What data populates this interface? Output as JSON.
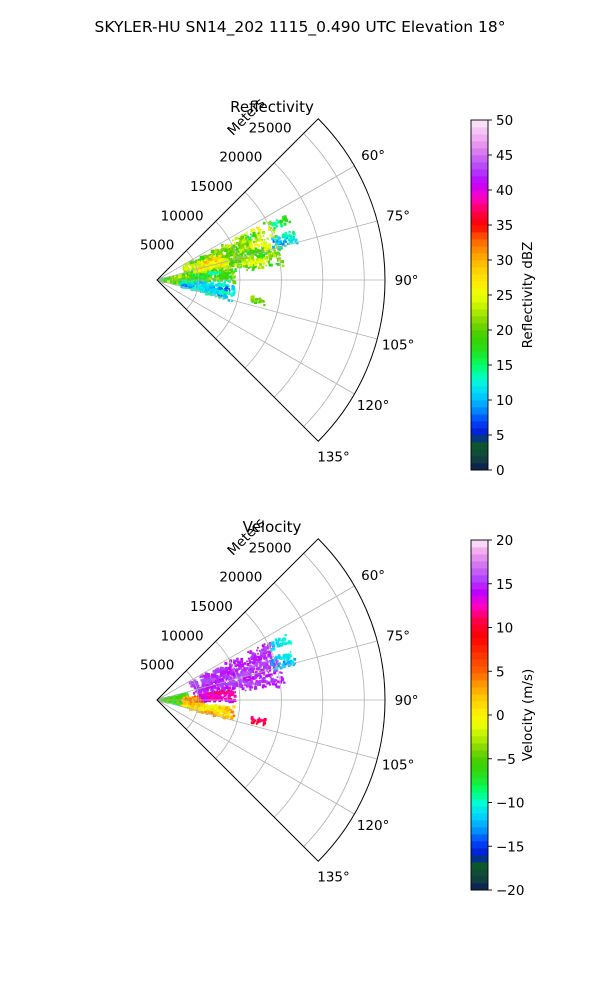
{
  "figure": {
    "suptitle": "SKYLER-HU  SN14_202  1115_0.490 UTC Elevation 18°"
  },
  "chart_data": [
    {
      "type": "heatmap",
      "projection": "polar-sector",
      "title": "Reflectivity",
      "range_label": "Meters",
      "theta_range_deg": [
        45,
        135
      ],
      "r_max": 27500,
      "r_ticks": [
        5000,
        10000,
        15000,
        20000,
        25000
      ],
      "r_tick_labels": [
        "5000",
        "10000",
        "15000",
        "20000",
        "25000"
      ],
      "theta_ticks": [
        60,
        75,
        90,
        105,
        120,
        135
      ],
      "theta_tick_labels": [
        "60°",
        "75°",
        "90°",
        "105°",
        "120°",
        "135°"
      ],
      "grid": true,
      "colorbar": {
        "label": "Reflectivity dBZ",
        "vmin": 0,
        "vmax": 50,
        "ticks": [
          0,
          5,
          10,
          15,
          20,
          25,
          30,
          35,
          40,
          45,
          50
        ],
        "tick_labels": [
          "0",
          "5",
          "10",
          "15",
          "20",
          "25",
          "30",
          "35",
          "40",
          "45",
          "50"
        ],
        "stops": [
          {
            "v": 0,
            "color": "#0d1b55"
          },
          {
            "v": 2,
            "color": "#12473a"
          },
          {
            "v": 4,
            "color": "#0b5a2a"
          },
          {
            "v": 5,
            "color": "#0018c8"
          },
          {
            "v": 7,
            "color": "#0044ff"
          },
          {
            "v": 9,
            "color": "#009cff"
          },
          {
            "v": 11,
            "color": "#00d6ff"
          },
          {
            "v": 13,
            "color": "#00ffd0"
          },
          {
            "v": 15,
            "color": "#00ff66"
          },
          {
            "v": 17,
            "color": "#24e21e"
          },
          {
            "v": 19,
            "color": "#3ccf00"
          },
          {
            "v": 21,
            "color": "#7ad400"
          },
          {
            "v": 23,
            "color": "#b8f000"
          },
          {
            "v": 25,
            "color": "#eeff00"
          },
          {
            "v": 27,
            "color": "#ffea00"
          },
          {
            "v": 29,
            "color": "#ffc800"
          },
          {
            "v": 31,
            "color": "#ff9a00"
          },
          {
            "v": 33,
            "color": "#ff6000"
          },
          {
            "v": 35,
            "color": "#ff0000"
          },
          {
            "v": 37,
            "color": "#ff0050"
          },
          {
            "v": 39,
            "color": "#ff00c8"
          },
          {
            "v": 41,
            "color": "#c000ff"
          },
          {
            "v": 43,
            "color": "#b040ff"
          },
          {
            "v": 45,
            "color": "#d070f0"
          },
          {
            "v": 47,
            "color": "#eea0ee"
          },
          {
            "v": 50,
            "color": "#fcebfa"
          }
        ]
      },
      "echo_cells": [
        {
          "t0": 77,
          "t1": 102,
          "r0": 300,
          "r1": 4800,
          "v": 20,
          "noise": 4
        },
        {
          "t0": 62,
          "t1": 84,
          "r0": 3500,
          "r1": 15500,
          "v": 21,
          "noise": 4
        },
        {
          "t0": 68,
          "t1": 79,
          "r0": 4500,
          "r1": 8500,
          "v": 27,
          "noise": 3
        },
        {
          "t0": 82,
          "t1": 92,
          "r0": 4000,
          "r1": 9500,
          "v": 17,
          "noise": 4
        },
        {
          "t0": 92,
          "t1": 106,
          "r0": 3000,
          "r1": 9500,
          "v": 11,
          "noise": 3
        },
        {
          "t0": 70,
          "t1": 76,
          "r0": 14500,
          "r1": 17500,
          "v": 13,
          "noise": 4
        },
        {
          "t0": 63,
          "t1": 67,
          "r0": 15000,
          "r1": 17500,
          "v": 15,
          "noise": 3
        },
        {
          "t0": 100,
          "t1": 104,
          "r0": 11500,
          "r1": 13500,
          "v": 20,
          "noise": 2
        }
      ]
    },
    {
      "type": "heatmap",
      "projection": "polar-sector",
      "title": "Velocity",
      "range_label": "Meters",
      "theta_range_deg": [
        45,
        135
      ],
      "r_max": 27500,
      "r_ticks": [
        5000,
        10000,
        15000,
        20000,
        25000
      ],
      "r_tick_labels": [
        "5000",
        "10000",
        "15000",
        "20000",
        "25000"
      ],
      "theta_ticks": [
        60,
        75,
        90,
        105,
        120,
        135
      ],
      "theta_tick_labels": [
        "60°",
        "75°",
        "90°",
        "105°",
        "120°",
        "135°"
      ],
      "grid": true,
      "colorbar": {
        "label": "Velocity (m/s)",
        "vmin": -20,
        "vmax": 20,
        "ticks": [
          -20,
          -15,
          -10,
          -5,
          0,
          5,
          10,
          15,
          20
        ],
        "tick_labels": [
          "−20",
          "−15",
          "−10",
          "−5",
          "0",
          "5",
          "10",
          "15",
          "20"
        ],
        "stops": [
          {
            "v": -20,
            "color": "#0d1b55"
          },
          {
            "v": -18.5,
            "color": "#12473a"
          },
          {
            "v": -17,
            "color": "#0b5a2a"
          },
          {
            "v": -16,
            "color": "#0018c8"
          },
          {
            "v": -14.5,
            "color": "#0044ff"
          },
          {
            "v": -13,
            "color": "#009cff"
          },
          {
            "v": -11.5,
            "color": "#00d6ff"
          },
          {
            "v": -10,
            "color": "#00ffd0"
          },
          {
            "v": -8.5,
            "color": "#00ff66"
          },
          {
            "v": -7,
            "color": "#24e21e"
          },
          {
            "v": -5.5,
            "color": "#3ccf00"
          },
          {
            "v": -4,
            "color": "#7ad400"
          },
          {
            "v": -2.5,
            "color": "#b8f000"
          },
          {
            "v": -1,
            "color": "#eeff00"
          },
          {
            "v": 0.5,
            "color": "#ffea00"
          },
          {
            "v": 2,
            "color": "#ffc800"
          },
          {
            "v": 3.5,
            "color": "#ff9a00"
          },
          {
            "v": 5,
            "color": "#ff6000"
          },
          {
            "v": 7,
            "color": "#ff3000"
          },
          {
            "v": 9,
            "color": "#ff0000"
          },
          {
            "v": 11,
            "color": "#ff0050"
          },
          {
            "v": 12.5,
            "color": "#ff00c8"
          },
          {
            "v": 14,
            "color": "#c000ff"
          },
          {
            "v": 15.5,
            "color": "#b040ff"
          },
          {
            "v": 17,
            "color": "#d070f0"
          },
          {
            "v": 18.5,
            "color": "#eea0ee"
          },
          {
            "v": 20,
            "color": "#fcebfa"
          }
        ]
      },
      "echo_cells": [
        {
          "t0": 77,
          "t1": 102,
          "r0": 300,
          "r1": 3800,
          "v": -6,
          "noise": 2
        },
        {
          "t0": 84,
          "t1": 102,
          "r0": 3000,
          "r1": 5800,
          "v": 5,
          "noise": 3
        },
        {
          "t0": 95,
          "t1": 106,
          "r0": 3000,
          "r1": 9500,
          "v": 2,
          "noise": 3
        },
        {
          "t0": 62,
          "t1": 84,
          "r0": 4500,
          "r1": 15500,
          "v": 15,
          "noise": 1
        },
        {
          "t0": 82,
          "t1": 92,
          "r0": 4800,
          "r1": 9500,
          "v": 13,
          "noise": 2
        },
        {
          "t0": 70,
          "t1": 76,
          "r0": 14500,
          "r1": 17500,
          "v": -11,
          "noise": 2
        },
        {
          "t0": 63,
          "t1": 67,
          "r0": 15000,
          "r1": 17500,
          "v": -11,
          "noise": 1
        },
        {
          "t0": 100,
          "t1": 104,
          "r0": 11500,
          "r1": 13500,
          "v": 10,
          "noise": 2
        }
      ]
    }
  ]
}
